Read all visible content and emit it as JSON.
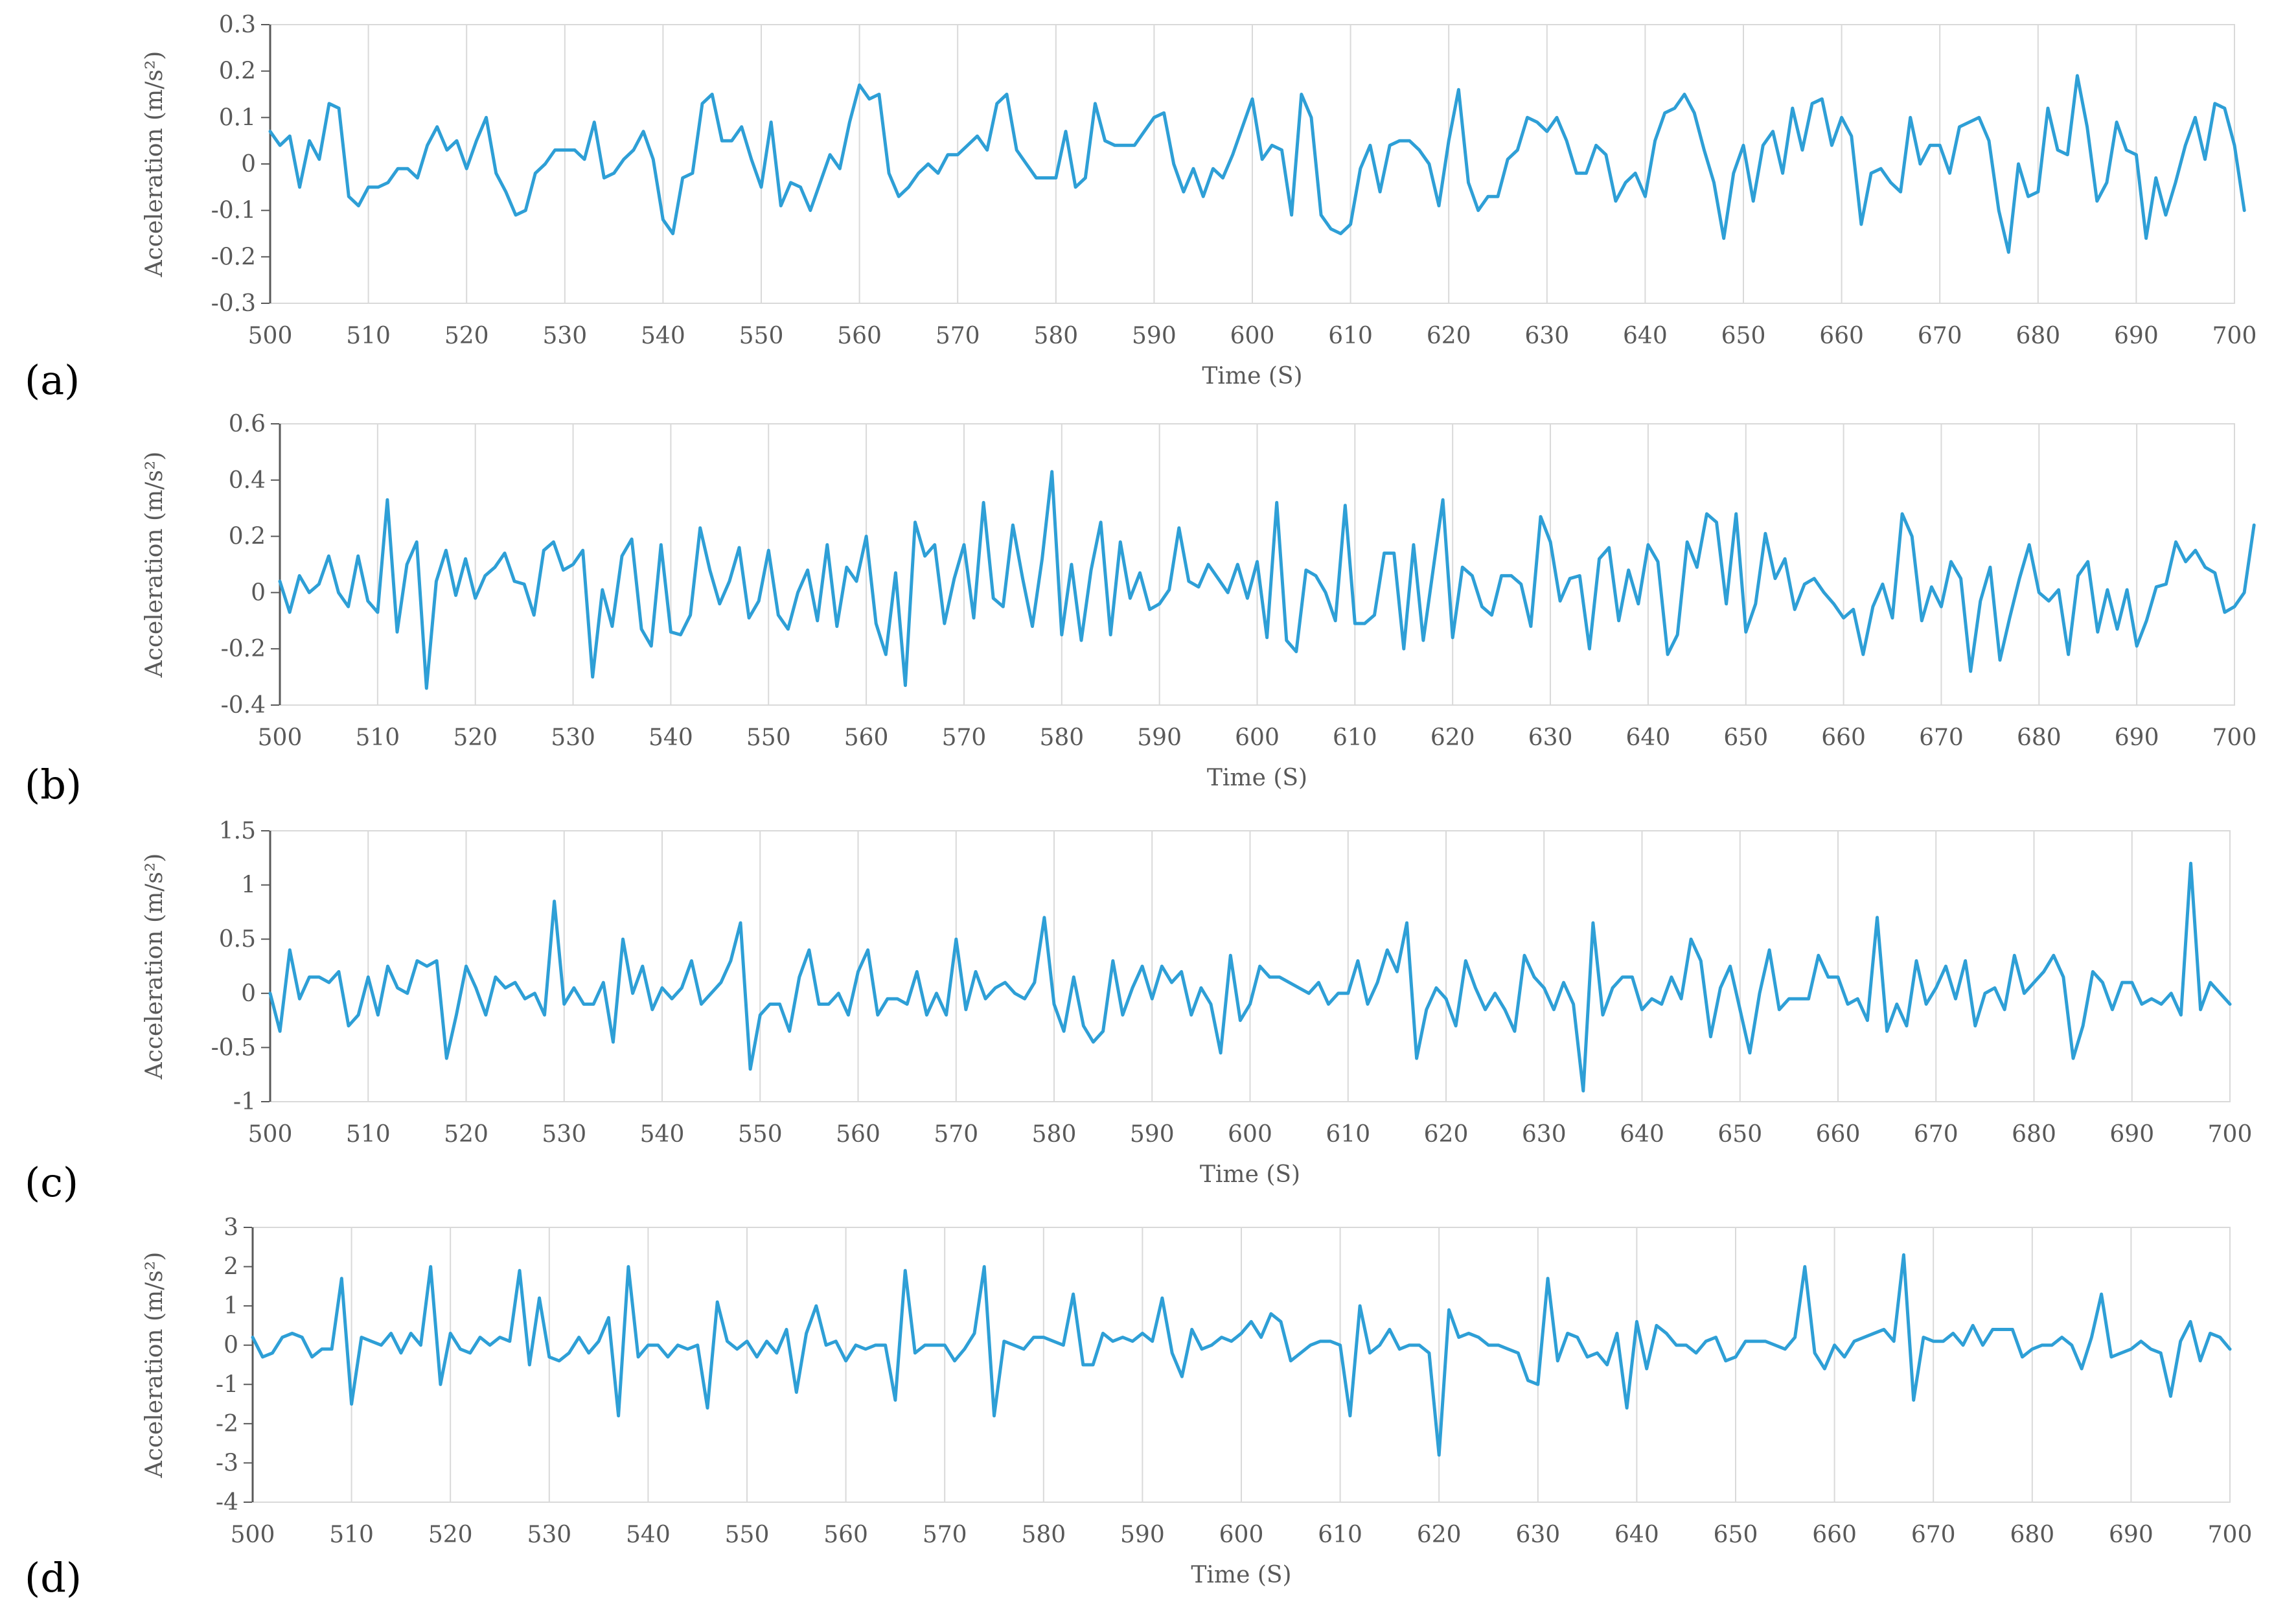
{
  "figure": {
    "panels": [
      "a",
      "b",
      "c",
      "d"
    ],
    "series_color": "#2E9FD6",
    "grid_color": "#D9D9D9",
    "axis_color": "#595959"
  },
  "chart_data": [
    {
      "type": "line",
      "panel_label": "(a)",
      "xlabel": "Time (S)",
      "ylabel": "Acceleration (m/s²)",
      "xlim": [
        500,
        700
      ],
      "ylim": [
        -0.3,
        0.3
      ],
      "x_ticks": [
        "500",
        "510",
        "520",
        "530",
        "540",
        "550",
        "560",
        "570",
        "580",
        "590",
        "600",
        "610",
        "620",
        "630",
        "640",
        "650",
        "660",
        "670",
        "680",
        "690",
        "700"
      ],
      "y_ticks": [
        "0.3",
        "0.2",
        "0.1",
        "0",
        "-0.1",
        "-0.2",
        "-0.3"
      ],
      "grid": true,
      "legend": "none",
      "series": [
        {
          "x_start": 500,
          "x_step": 1,
          "values": [
            0.07,
            0.04,
            0.06,
            -0.05,
            0.05,
            0.01,
            0.13,
            0.12,
            -0.07,
            -0.09,
            -0.05,
            -0.05,
            -0.04,
            -0.01,
            -0.01,
            -0.03,
            0.04,
            0.08,
            0.03,
            0.05,
            -0.01,
            0.05,
            0.1,
            -0.02,
            -0.06,
            -0.11,
            -0.1,
            -0.02,
            0.0,
            0.03,
            0.03,
            0.03,
            0.01,
            0.09,
            -0.03,
            -0.02,
            0.01,
            0.03,
            0.07,
            0.01,
            -0.12,
            -0.15,
            -0.03,
            -0.02,
            0.13,
            0.15,
            0.05,
            0.05,
            0.08,
            0.01,
            -0.05,
            0.09,
            -0.09,
            -0.04,
            -0.05,
            -0.1,
            -0.04,
            0.02,
            -0.01,
            0.09,
            0.17,
            0.14,
            0.15,
            -0.02,
            -0.07,
            -0.05,
            -0.02,
            0.0,
            -0.02,
            0.02,
            0.02,
            0.04,
            0.06,
            0.03,
            0.13,
            0.15,
            0.03,
            0.0,
            -0.03,
            -0.03,
            -0.03,
            0.07,
            -0.05,
            -0.03,
            0.13,
            0.05,
            0.04,
            0.04,
            0.04,
            0.07,
            0.1,
            0.11,
            0.0,
            -0.06,
            -0.01,
            -0.07,
            -0.01,
            -0.03,
            0.02,
            0.08,
            0.14,
            0.01,
            0.04,
            0.03,
            -0.11,
            0.15,
            0.1,
            -0.11,
            -0.14,
            -0.15,
            -0.13,
            -0.01,
            0.04,
            -0.06,
            0.04,
            0.05,
            0.05,
            0.03,
            0.0,
            -0.09,
            0.05,
            0.16,
            -0.04,
            -0.1,
            -0.07,
            -0.07,
            0.01,
            0.03,
            0.1,
            0.09,
            0.07,
            0.1,
            0.05,
            -0.02,
            -0.02,
            0.04,
            0.02,
            -0.08,
            -0.04,
            -0.02,
            -0.07,
            0.05,
            0.11,
            0.12,
            0.15,
            0.11,
            0.03,
            -0.04,
            -0.16,
            -0.02,
            0.04,
            -0.08,
            0.04,
            0.07,
            -0.02,
            0.12,
            0.03,
            0.13,
            0.14,
            0.04,
            0.1,
            0.06,
            -0.13,
            -0.02,
            -0.01,
            -0.04,
            -0.06,
            0.1,
            0.0,
            0.04,
            0.04,
            -0.02,
            0.08,
            0.09,
            0.1,
            0.05,
            -0.1,
            -0.19,
            0.0,
            -0.07,
            -0.06,
            0.12,
            0.03,
            0.02,
            0.19,
            0.08,
            -0.08,
            -0.04,
            0.09,
            0.03,
            0.02,
            -0.16,
            -0.03,
            -0.11,
            -0.04,
            0.04,
            0.1,
            0.01,
            0.13,
            0.12,
            0.04,
            -0.1
          ]
        }
      ]
    },
    {
      "type": "line",
      "panel_label": "(b)",
      "xlabel": "Time (S)",
      "ylabel": "Acceleration (m/s²)",
      "xlim": [
        500,
        700
      ],
      "ylim": [
        -0.4,
        0.6
      ],
      "x_ticks": [
        "500",
        "510",
        "520",
        "530",
        "540",
        "550",
        "560",
        "570",
        "580",
        "590",
        "600",
        "610",
        "620",
        "630",
        "640",
        "650",
        "660",
        "670",
        "680",
        "690",
        "700"
      ],
      "y_ticks": [
        "0.6",
        "0.4",
        "0.2",
        "0",
        "-0.2",
        "-0.4"
      ],
      "grid": true,
      "legend": "none",
      "series": [
        {
          "x_start": 500,
          "x_step": 1,
          "values": [
            0.04,
            -0.07,
            0.06,
            0.0,
            0.03,
            0.13,
            0.0,
            -0.05,
            0.13,
            -0.03,
            -0.07,
            0.33,
            -0.14,
            0.1,
            0.18,
            -0.34,
            0.04,
            0.15,
            -0.01,
            0.12,
            -0.02,
            0.06,
            0.09,
            0.14,
            0.04,
            0.03,
            -0.08,
            0.15,
            0.18,
            0.08,
            0.1,
            0.15,
            -0.3,
            0.01,
            -0.12,
            0.13,
            0.19,
            -0.13,
            -0.19,
            0.17,
            -0.14,
            -0.15,
            -0.08,
            0.23,
            0.08,
            -0.04,
            0.04,
            0.16,
            -0.09,
            -0.03,
            0.15,
            -0.08,
            -0.13,
            0.0,
            0.08,
            -0.1,
            0.17,
            -0.12,
            0.09,
            0.04,
            0.2,
            -0.11,
            -0.22,
            0.07,
            -0.33,
            0.25,
            0.13,
            0.17,
            -0.11,
            0.05,
            0.17,
            -0.09,
            0.32,
            -0.02,
            -0.05,
            0.24,
            0.05,
            -0.12,
            0.12,
            0.43,
            -0.15,
            0.1,
            -0.17,
            0.08,
            0.25,
            -0.15,
            0.18,
            -0.02,
            0.07,
            -0.06,
            -0.04,
            0.01,
            0.23,
            0.04,
            0.02,
            0.1,
            0.05,
            0.0,
            0.1,
            -0.02,
            0.11,
            -0.16,
            0.32,
            -0.17,
            -0.21,
            0.08,
            0.06,
            0.0,
            -0.1,
            0.31,
            -0.11,
            -0.11,
            -0.08,
            0.14,
            0.14,
            -0.2,
            0.17,
            -0.17,
            0.08,
            0.33,
            -0.16,
            0.09,
            0.06,
            -0.05,
            -0.08,
            0.06,
            0.06,
            0.03,
            -0.12,
            0.27,
            0.18,
            -0.03,
            0.05,
            0.06,
            -0.2,
            0.12,
            0.16,
            -0.1,
            0.08,
            -0.04,
            0.17,
            0.11,
            -0.22,
            -0.15,
            0.18,
            0.09,
            0.28,
            0.25,
            -0.04,
            0.28,
            -0.14,
            -0.04,
            0.21,
            0.05,
            0.12,
            -0.06,
            0.03,
            0.05,
            0.0,
            -0.04,
            -0.09,
            -0.06,
            -0.22,
            -0.05,
            0.03,
            -0.09,
            0.28,
            0.2,
            -0.1,
            0.02,
            -0.05,
            0.11,
            0.05,
            -0.28,
            -0.03,
            0.09,
            -0.24,
            -0.09,
            0.05,
            0.17,
            0.0,
            -0.03,
            0.01,
            -0.22,
            0.06,
            0.11,
            -0.14,
            0.01,
            -0.13,
            0.01,
            -0.19,
            -0.1,
            0.02,
            0.03,
            0.18,
            0.11,
            0.15,
            0.09,
            0.07,
            -0.07,
            -0.05,
            0.0,
            0.24
          ]
        }
      ]
    },
    {
      "type": "line",
      "panel_label": "(c)",
      "xlabel": "Time (S)",
      "ylabel": "Acceleration (m/s²)",
      "xlim": [
        500,
        700
      ],
      "ylim": [
        -1,
        1.5
      ],
      "x_ticks": [
        "500",
        "510",
        "520",
        "530",
        "540",
        "550",
        "560",
        "570",
        "580",
        "590",
        "600",
        "610",
        "620",
        "630",
        "640",
        "650",
        "660",
        "670",
        "680",
        "690",
        "700"
      ],
      "y_ticks": [
        "1.5",
        "1",
        "0.5",
        "0",
        "-0.5",
        "-1"
      ],
      "grid": true,
      "legend": "none",
      "series": [
        {
          "x_start": 500,
          "x_step": 1,
          "values": [
            0.0,
            -0.35,
            0.4,
            -0.05,
            0.15,
            0.15,
            0.1,
            0.2,
            -0.3,
            -0.2,
            0.15,
            -0.2,
            0.25,
            0.05,
            0.0,
            0.3,
            0.25,
            0.3,
            -0.6,
            -0.2,
            0.25,
            0.05,
            -0.2,
            0.15,
            0.05,
            0.1,
            -0.05,
            0.0,
            -0.2,
            0.85,
            -0.1,
            0.05,
            -0.1,
            -0.1,
            0.1,
            -0.45,
            0.5,
            0.0,
            0.25,
            -0.15,
            0.05,
            -0.05,
            0.05,
            0.3,
            -0.1,
            0.0,
            0.1,
            0.3,
            0.65,
            -0.7,
            -0.2,
            -0.1,
            -0.1,
            -0.35,
            0.15,
            0.4,
            -0.1,
            -0.1,
            0.0,
            -0.2,
            0.2,
            0.4,
            -0.2,
            -0.05,
            -0.05,
            -0.1,
            0.2,
            -0.2,
            0.0,
            -0.2,
            0.5,
            -0.15,
            0.2,
            -0.05,
            0.05,
            0.1,
            0.0,
            -0.05,
            0.1,
            0.7,
            -0.1,
            -0.35,
            0.15,
            -0.3,
            -0.45,
            -0.35,
            0.3,
            -0.2,
            0.05,
            0.25,
            -0.05,
            0.25,
            0.1,
            0.2,
            -0.2,
            0.05,
            -0.1,
            -0.55,
            0.35,
            -0.25,
            -0.1,
            0.25,
            0.15,
            0.15,
            0.1,
            0.05,
            0.0,
            0.1,
            -0.1,
            0.0,
            0.0,
            0.3,
            -0.1,
            0.1,
            0.4,
            0.2,
            0.65,
            -0.6,
            -0.15,
            0.05,
            -0.05,
            -0.3,
            0.3,
            0.05,
            -0.15,
            0.0,
            -0.15,
            -0.35,
            0.35,
            0.15,
            0.05,
            -0.15,
            0.1,
            -0.1,
            -0.9,
            0.65,
            -0.2,
            0.05,
            0.15,
            0.15,
            -0.15,
            -0.05,
            -0.1,
            0.15,
            -0.05,
            0.5,
            0.3,
            -0.4,
            0.05,
            0.25,
            -0.15,
            -0.55,
            0.0,
            0.4,
            -0.15,
            -0.05,
            -0.05,
            -0.05,
            0.35,
            0.15,
            0.15,
            -0.1,
            -0.05,
            -0.25,
            0.7,
            -0.35,
            -0.1,
            -0.3,
            0.3,
            -0.1,
            0.05,
            0.25,
            -0.05,
            0.3,
            -0.3,
            0.0,
            0.05,
            -0.15,
            0.35,
            0.0,
            0.1,
            0.2,
            0.35,
            0.15,
            -0.6,
            -0.3,
            0.2,
            0.1,
            -0.15,
            0.1,
            0.1,
            -0.1,
            -0.05,
            -0.1,
            0.0,
            -0.2,
            1.2,
            -0.15,
            0.1,
            0.0,
            -0.1
          ]
        }
      ]
    },
    {
      "type": "line",
      "panel_label": "(d)",
      "xlabel": "Time (S)",
      "ylabel": "Acceleration (m/s²)",
      "xlim": [
        500,
        700
      ],
      "ylim": [
        -4,
        3
      ],
      "x_ticks": [
        "500",
        "510",
        "520",
        "530",
        "540",
        "550",
        "560",
        "570",
        "580",
        "590",
        "600",
        "610",
        "620",
        "630",
        "640",
        "650",
        "660",
        "670",
        "680",
        "690",
        "700"
      ],
      "y_ticks": [
        "3",
        "2",
        "1",
        "0",
        "-1",
        "-2",
        "-3",
        "-4"
      ],
      "grid": true,
      "legend": "none",
      "series": [
        {
          "x_start": 500,
          "x_step": 1,
          "values": [
            0.2,
            -0.3,
            -0.2,
            0.2,
            0.3,
            0.2,
            -0.3,
            -0.1,
            -0.1,
            1.7,
            -1.5,
            0.2,
            0.1,
            0.0,
            0.3,
            -0.2,
            0.3,
            0.0,
            2.0,
            -1.0,
            0.3,
            -0.1,
            -0.2,
            0.2,
            0.0,
            0.2,
            0.1,
            1.9,
            -0.5,
            1.2,
            -0.3,
            -0.4,
            -0.2,
            0.2,
            -0.2,
            0.1,
            0.7,
            -1.8,
            2.0,
            -0.3,
            0.0,
            0.0,
            -0.3,
            0.0,
            -0.1,
            0.0,
            -1.6,
            1.1,
            0.1,
            -0.1,
            0.1,
            -0.3,
            0.1,
            -0.2,
            0.4,
            -1.2,
            0.3,
            1.0,
            0.0,
            0.1,
            -0.4,
            0.0,
            -0.1,
            0.0,
            0.0,
            -1.4,
            1.9,
            -0.2,
            0.0,
            0.0,
            0.0,
            -0.4,
            -0.1,
            0.3,
            2.0,
            -1.8,
            0.1,
            0.0,
            -0.1,
            0.2,
            0.2,
            0.1,
            0.0,
            1.3,
            -0.5,
            -0.5,
            0.3,
            0.1,
            0.2,
            0.1,
            0.3,
            0.1,
            1.2,
            -0.2,
            -0.8,
            0.4,
            -0.1,
            0.0,
            0.2,
            0.1,
            0.3,
            0.6,
            0.2,
            0.8,
            0.6,
            -0.4,
            -0.2,
            0.0,
            0.1,
            0.1,
            0.0,
            -1.8,
            1.0,
            -0.2,
            0.0,
            0.4,
            -0.1,
            0.0,
            0.0,
            -0.2,
            -2.8,
            0.9,
            0.2,
            0.3,
            0.2,
            0.0,
            0.0,
            -0.1,
            -0.2,
            -0.9,
            -1.0,
            1.7,
            -0.4,
            0.3,
            0.2,
            -0.3,
            -0.2,
            -0.5,
            0.3,
            -1.6,
            0.6,
            -0.6,
            0.5,
            0.3,
            0.0,
            0.0,
            -0.2,
            0.1,
            0.2,
            -0.4,
            -0.3,
            0.1,
            0.1,
            0.1,
            0.0,
            -0.1,
            0.2,
            2.0,
            -0.2,
            -0.6,
            0.0,
            -0.3,
            0.1,
            0.2,
            0.3,
            0.4,
            0.1,
            2.3,
            -1.4,
            0.2,
            0.1,
            0.1,
            0.3,
            0.0,
            0.5,
            0.0,
            0.4,
            0.4,
            0.4,
            -0.3,
            -0.1,
            0.0,
            0.0,
            0.2,
            0.0,
            -0.6,
            0.2,
            1.3,
            -0.3,
            -0.2,
            -0.1,
            0.1,
            -0.1,
            -0.2,
            -1.3,
            0.1,
            0.6,
            -0.4,
            0.3,
            0.2,
            -0.1
          ]
        }
      ]
    }
  ]
}
